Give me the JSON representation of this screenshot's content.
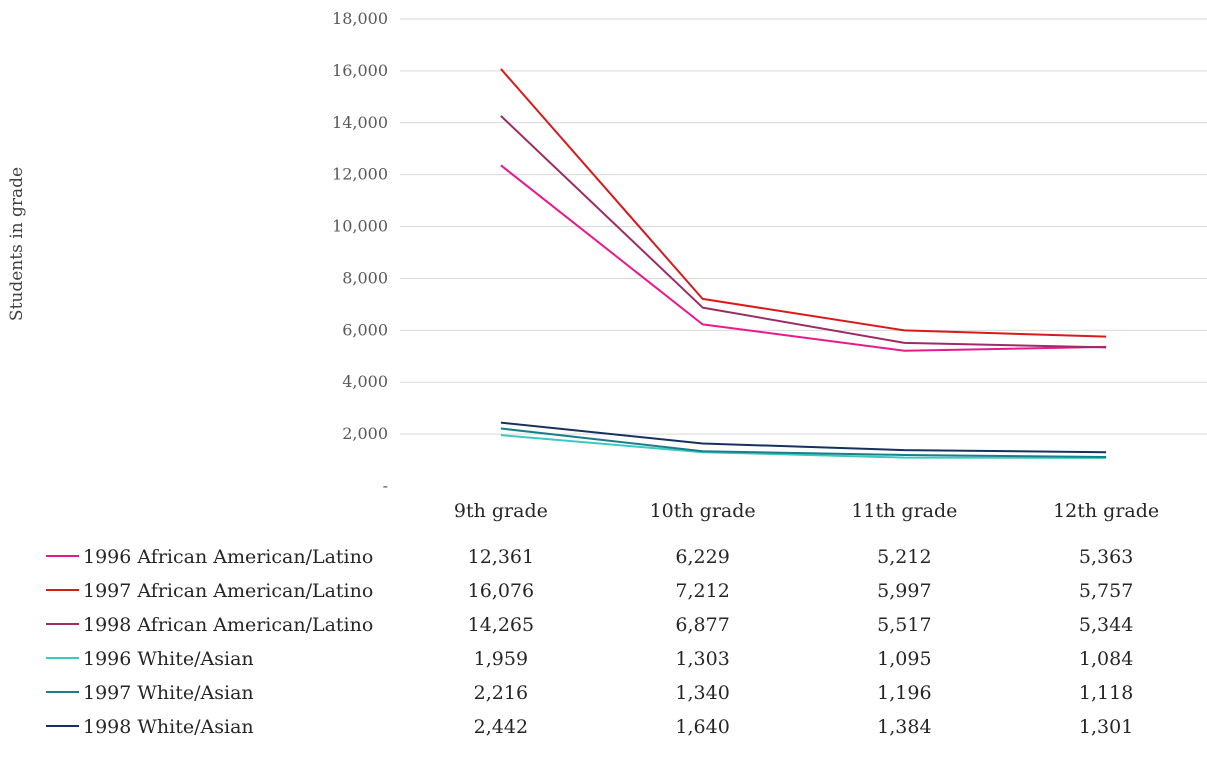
{
  "chart_data": {
    "type": "line",
    "title": "",
    "xlabel": "",
    "ylabel": "Students in grade",
    "ylim": [
      0,
      18000
    ],
    "yticks": [
      0,
      2000,
      4000,
      6000,
      8000,
      10000,
      12000,
      14000,
      16000,
      18000
    ],
    "ytick_labels": [
      "-",
      "2,000",
      "4,000",
      "6,000",
      "8,000",
      "10,000",
      "12,000",
      "14,000",
      "16,000",
      "18,000"
    ],
    "grid": true,
    "legend": "data-table-below",
    "categories": [
      "9th grade",
      "10th grade",
      "11th grade",
      "12th grade"
    ],
    "series": [
      {
        "name": "1996 African American/Latino",
        "color": "#e8198b",
        "values": [
          12361,
          6229,
          5212,
          5363
        ],
        "labels": [
          "12,361",
          "6,229",
          "5,212",
          "5,363"
        ]
      },
      {
        "name": "1997 African American/Latino",
        "color": "#d91a1a",
        "values": [
          16076,
          7212,
          5997,
          5757
        ],
        "labels": [
          "16,076",
          "7,212",
          "5,997",
          "5,757"
        ]
      },
      {
        "name": "1998 African American/Latino",
        "color": "#9b2d64",
        "values": [
          14265,
          6877,
          5517,
          5344
        ],
        "labels": [
          "14,265",
          "6,877",
          "5,517",
          "5,344"
        ]
      },
      {
        "name": "1996 White/Asian",
        "color": "#3cc9c0",
        "values": [
          1959,
          1303,
          1095,
          1084
        ],
        "labels": [
          "1,959",
          "1,303",
          "1,095",
          "1,084"
        ]
      },
      {
        "name": "1997 White/Asian",
        "color": "#1a7f86",
        "values": [
          2216,
          1340,
          1196,
          1118
        ],
        "labels": [
          "2,216",
          "1,340",
          "1,196",
          "1,118"
        ]
      },
      {
        "name": "1998 White/Asian",
        "color": "#17315e",
        "values": [
          2442,
          1640,
          1384,
          1301
        ],
        "labels": [
          "2,442",
          "1,640",
          "1,384",
          "1,301"
        ]
      }
    ]
  }
}
